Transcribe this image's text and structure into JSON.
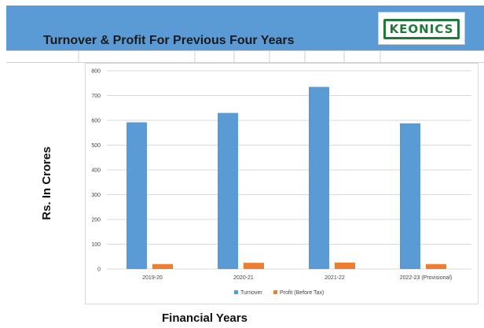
{
  "header": {
    "title": "Turnover & Profit  For Previous  Four Years",
    "logo_text": "KEONICS",
    "bg_color": "#5b9bd5"
  },
  "axis_titles": {
    "y": "Rs. In Crores",
    "x": "Financial  Years"
  },
  "chart_data": {
    "type": "bar",
    "categories": [
      "2019-20",
      "2020-21",
      "2021-22",
      "2022-23 (Provisional)"
    ],
    "series": [
      {
        "name": "Turnover",
        "color": "#5b9bd5",
        "values": [
          592,
          630,
          735,
          588
        ]
      },
      {
        "name": "Profit (Before Tax)",
        "color": "#ed7d31",
        "values": [
          20,
          25,
          26,
          20
        ]
      }
    ],
    "ylim": [
      0,
      800
    ],
    "yticks": [
      "0",
      "100",
      "200",
      "300",
      "400",
      "500",
      "600",
      "700",
      "800"
    ],
    "grid": true,
    "legend": "bottom"
  }
}
